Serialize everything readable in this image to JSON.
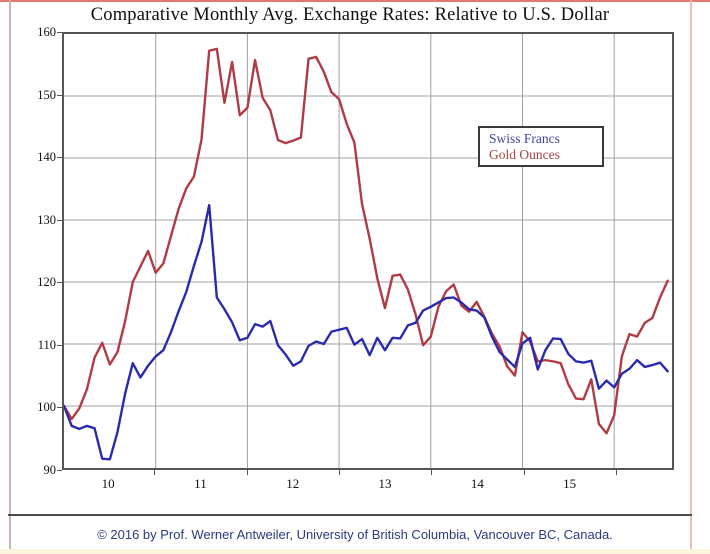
{
  "page": {
    "title_text": "Comparative Monthly Avg. Exchange Rates: Relative to U.S. Dollar",
    "footer_text": "© 2016 by Prof. Werner Antweiler, University of British Columbia, Vancouver BC, Canada."
  },
  "legend": {
    "items": [
      {
        "label": "Swiss Francs",
        "color": "#3d44a0"
      },
      {
        "label": "Gold Ounces",
        "color": "#ac4343"
      }
    ]
  },
  "chart_data": {
    "type": "line",
    "title": "Comparative Monthly Avg. Exchange Rates: Relative to U.S. Dollar",
    "x_frequency": "monthly",
    "x_start": "2010-01",
    "x_end": "2016-08",
    "x_tick_labels": [
      "10",
      "11",
      "12",
      "13",
      "14",
      "15"
    ],
    "y_ticks": [
      160,
      150,
      140,
      130,
      120,
      110,
      100,
      90
    ],
    "ylim": [
      90,
      160
    ],
    "grid": true,
    "legend_position": "upper right inside",
    "plot_colors": {
      "grid": "#a0a0a0",
      "frame": "#555555"
    },
    "x_months": [
      "2010-01",
      "2010-02",
      "2010-03",
      "2010-04",
      "2010-05",
      "2010-06",
      "2010-07",
      "2010-08",
      "2010-09",
      "2010-10",
      "2010-11",
      "2010-12",
      "2011-01",
      "2011-02",
      "2011-03",
      "2011-04",
      "2011-05",
      "2011-06",
      "2011-07",
      "2011-08",
      "2011-09",
      "2011-10",
      "2011-11",
      "2011-12",
      "2012-01",
      "2012-02",
      "2012-03",
      "2012-04",
      "2012-05",
      "2012-06",
      "2012-07",
      "2012-08",
      "2012-09",
      "2012-10",
      "2012-11",
      "2012-12",
      "2013-01",
      "2013-02",
      "2013-03",
      "2013-04",
      "2013-05",
      "2013-06",
      "2013-07",
      "2013-08",
      "2013-09",
      "2013-10",
      "2013-11",
      "2013-12",
      "2014-01",
      "2014-02",
      "2014-03",
      "2014-04",
      "2014-05",
      "2014-06",
      "2014-07",
      "2014-08",
      "2014-09",
      "2014-10",
      "2014-11",
      "2014-12",
      "2015-01",
      "2015-02",
      "2015-03",
      "2015-04",
      "2015-05",
      "2015-06",
      "2015-07",
      "2015-08",
      "2015-09",
      "2015-10",
      "2015-11",
      "2015-12",
      "2016-01",
      "2016-02",
      "2016-03",
      "2016-04",
      "2016-05",
      "2016-06",
      "2016-07",
      "2016-08"
    ],
    "series": [
      {
        "name": "Swiss Francs",
        "color": "#2a2aad",
        "values": [
          100.0,
          96.8,
          96.3,
          96.8,
          96.4,
          91.5,
          91.4,
          95.8,
          102.0,
          106.9,
          104.6,
          106.5,
          108.0,
          109.0,
          111.9,
          115.3,
          118.4,
          122.6,
          126.5,
          132.4,
          117.5,
          115.6,
          113.5,
          110.6,
          111.0,
          113.2,
          112.8,
          113.7,
          109.8,
          108.3,
          106.5,
          107.2,
          109.7,
          110.4,
          110.0,
          112.0,
          112.3,
          112.6,
          109.9,
          110.8,
          108.2,
          111.0,
          109.0,
          111.0,
          110.9,
          113.0,
          113.4,
          115.4,
          116.0,
          116.7,
          117.4,
          117.5,
          116.7,
          115.6,
          115.4,
          114.3,
          111.2,
          108.7,
          107.5,
          106.3,
          110.1,
          111.0,
          105.9,
          109.0,
          110.9,
          110.8,
          108.4,
          107.2,
          107.0,
          107.3,
          102.8,
          104.1,
          103.0,
          105.2,
          106.0,
          107.4,
          106.3,
          106.6,
          107.0,
          105.6
        ]
      },
      {
        "name": "Gold Ounces",
        "color": "#b23a43",
        "values": [
          100.0,
          97.9,
          99.6,
          102.7,
          107.8,
          110.2,
          106.7,
          108.7,
          113.7,
          120.0,
          122.5,
          125.0,
          121.5,
          123.0,
          127.4,
          131.8,
          135.1,
          137.0,
          143.0,
          157.3,
          157.6,
          148.9,
          155.5,
          146.9,
          148.1,
          155.8,
          149.7,
          147.7,
          142.9,
          142.4,
          142.8,
          143.3,
          156.0,
          156.3,
          153.9,
          150.6,
          149.5,
          145.5,
          142.5,
          132.6,
          127.0,
          120.6,
          115.8,
          121.0,
          121.2,
          118.8,
          114.8,
          109.8,
          111.2,
          116.0,
          118.5,
          119.6,
          116.2,
          115.2,
          116.8,
          114.4,
          111.7,
          109.6,
          106.4,
          104.9,
          111.9,
          110.4,
          107.2,
          107.4,
          107.2,
          106.9,
          103.5,
          101.2,
          101.1,
          104.3,
          97.1,
          95.6,
          98.5,
          108.0,
          111.6,
          111.2,
          113.4,
          114.2,
          117.5,
          120.2
        ]
      }
    ]
  }
}
